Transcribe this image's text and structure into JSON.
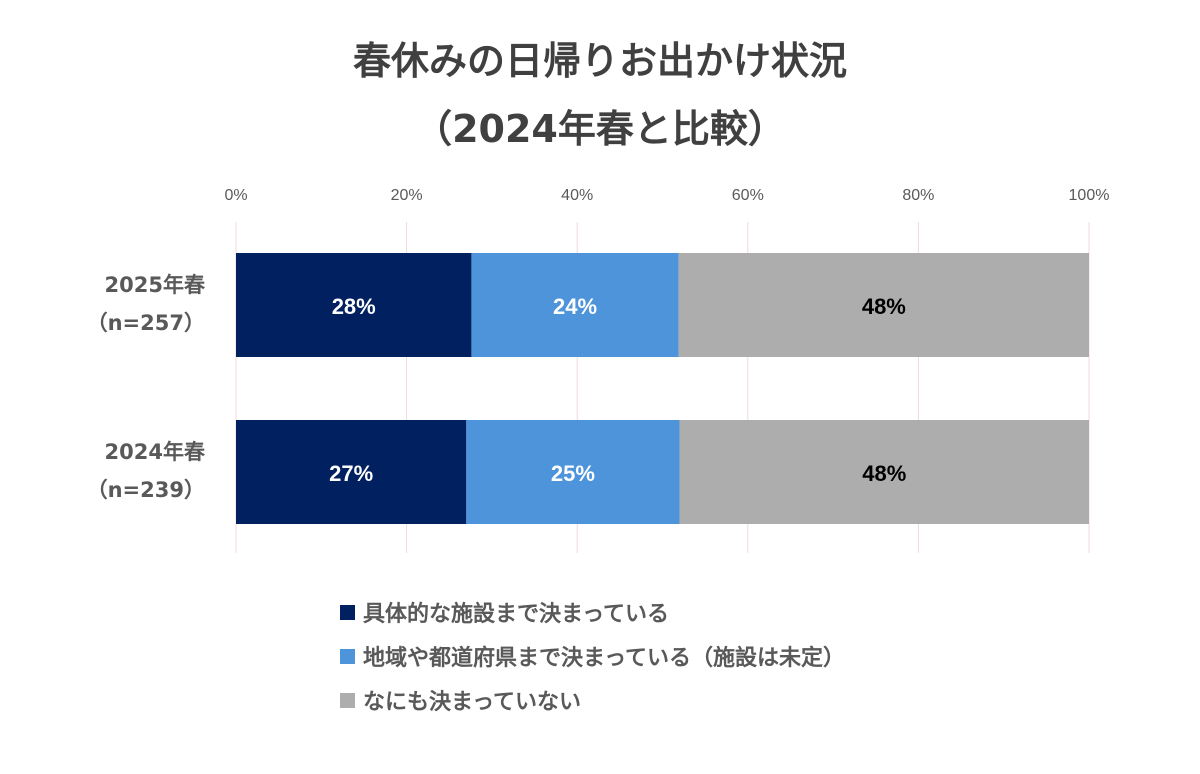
{
  "title_line1": "春休みの日帰りお出かけ状況",
  "title_line2": "（2024年春と比較）",
  "chart_data": {
    "type": "bar",
    "orientation": "horizontal",
    "stacked": "percent",
    "categories": [
      {
        "label_line1": "2025年春",
        "label_line2": "（n=257）"
      },
      {
        "label_line1": "2024年春",
        "label_line2": "（n=239）"
      }
    ],
    "series": [
      {
        "name": "具体的な施設まで決まっている",
        "values": [
          27.6,
          27.0
        ],
        "labels": [
          "28%",
          "27%"
        ],
        "color": "#002060",
        "label_color": "#ffffff"
      },
      {
        "name": "地域や都道府県まで決まっている（施設は未定）",
        "values": [
          24.3,
          25.0
        ],
        "labels": [
          "24%",
          "25%"
        ],
        "color": "#4d94db",
        "label_color": "#ffffff"
      },
      {
        "name": "なにも決まっていない",
        "values": [
          48.1,
          48.0
        ],
        "labels": [
          "48%",
          "48%"
        ],
        "color": "#adadad",
        "label_color": "#000000"
      }
    ],
    "xlim": [
      0,
      100
    ],
    "xticks": [
      "0%",
      "20%",
      "40%",
      "60%",
      "80%",
      "100%"
    ],
    "grid": true,
    "legend_position": "bottom"
  }
}
